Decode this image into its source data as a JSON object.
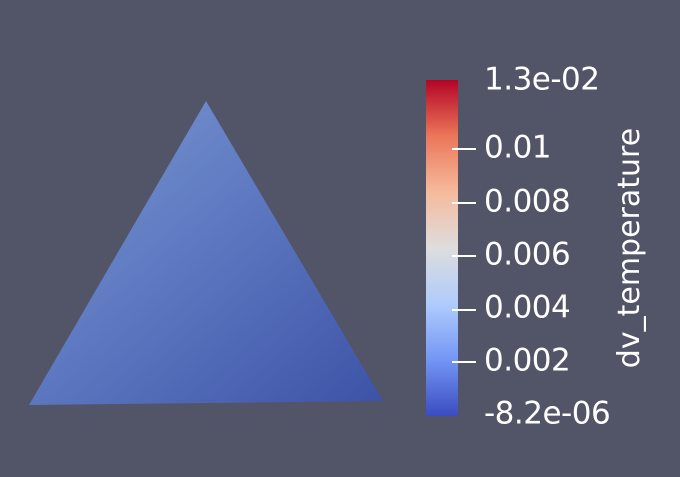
{
  "scene": {
    "background_color": "#525468",
    "shape": "triangle",
    "shape_colors": [
      "#6F8FCC",
      "#5A74BE",
      "#3F55A8"
    ]
  },
  "colorbar": {
    "title": "dv_temperature",
    "colormap": "Cool to Warm",
    "range": [
      -8.2e-06,
      0.013
    ],
    "labels": {
      "max": "1.3e-02",
      "min": "-8.2e-06",
      "ticks": [
        "0.01",
        "0.008",
        "0.006",
        "0.004",
        "0.002"
      ]
    },
    "tick_values": [
      0.01,
      0.008,
      0.006,
      0.004,
      0.002
    ],
    "gradient": [
      "#3B4CC0",
      "#7396F5",
      "#B0CBFC",
      "#DDDDDD",
      "#F6BA9C",
      "#EB7659",
      "#B40426"
    ]
  }
}
